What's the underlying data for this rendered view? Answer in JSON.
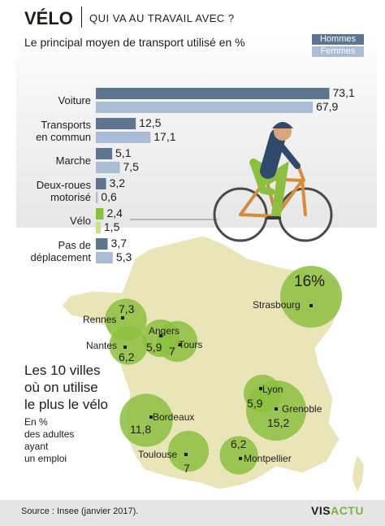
{
  "header": {
    "title": "VÉLO",
    "subtitle": "QUI VA AU TRAVAIL AVEC ?"
  },
  "colors": {
    "hommes": "#5d7591",
    "femmes": "#a9bdd6",
    "velo_hommes": "#8cbf3f",
    "velo_femmes": "#c8e08a",
    "map_land": "#e9e5b8",
    "bubble": "#8cbf3f"
  },
  "chart_data": [
    {
      "type": "bar",
      "title": "Le principal moyen de transport utilisé en %",
      "categories": [
        "Voiture",
        "Transports en commun",
        "Marche",
        "Deux-roues motorisé",
        "Vélo",
        "Pas de déplacement"
      ],
      "category_lines": [
        [
          "Voiture"
        ],
        [
          "Transports",
          "en commun"
        ],
        [
          "Marche"
        ],
        [
          "Deux-roues",
          "motorisé"
        ],
        [
          "Vélo"
        ],
        [
          "Pas de",
          "déplacement"
        ]
      ],
      "series": [
        {
          "name": "Hommes",
          "values": [
            73.1,
            12.5,
            5.1,
            3.2,
            2.4,
            3.7
          ],
          "labels": [
            "73,1",
            "12,5",
            "5,1",
            "3,2",
            "2,4",
            "3,7"
          ]
        },
        {
          "name": "Femmes",
          "values": [
            67.9,
            17.1,
            7.5,
            0.6,
            1.5,
            5.3
          ],
          "labels": [
            "67,9",
            "17,1",
            "7,5",
            "0,6",
            "1,5",
            "5,3"
          ]
        }
      ],
      "orientation": "horizontal",
      "legend_placement": "top-right"
    },
    {
      "type": "bubble-map",
      "title": "Les 10 villes où on utilise le plus le vélo",
      "title_lines": [
        "Les 10 villes",
        "où on utilise",
        "le plus le vélo"
      ],
      "unit_note_lines": [
        "En %",
        "des adultes",
        "ayant",
        "un emploi"
      ],
      "points": [
        {
          "city": "Strasbourg",
          "value": 16,
          "label": "16%"
        },
        {
          "city": "Grenoble",
          "value": 15.2,
          "label": "15,2"
        },
        {
          "city": "Bordeaux",
          "value": 11.8,
          "label": "11,8"
        },
        {
          "city": "Rennes",
          "value": 7.3,
          "label": "7,3"
        },
        {
          "city": "Tours",
          "value": 7,
          "label": "7"
        },
        {
          "city": "Toulouse",
          "value": 7,
          "label": "7"
        },
        {
          "city": "Nantes",
          "value": 6.2,
          "label": "6,2"
        },
        {
          "city": "Montpellier",
          "value": 6.2,
          "label": "6,2"
        },
        {
          "city": "Angers",
          "value": 5.9,
          "label": "5,9"
        },
        {
          "city": "Lyon",
          "value": 5.9,
          "label": "5,9"
        }
      ]
    }
  ],
  "footer": {
    "source": "Source : Insee (janvier 2017).",
    "brand_a": "VIS",
    "brand_b": "ACTU"
  }
}
